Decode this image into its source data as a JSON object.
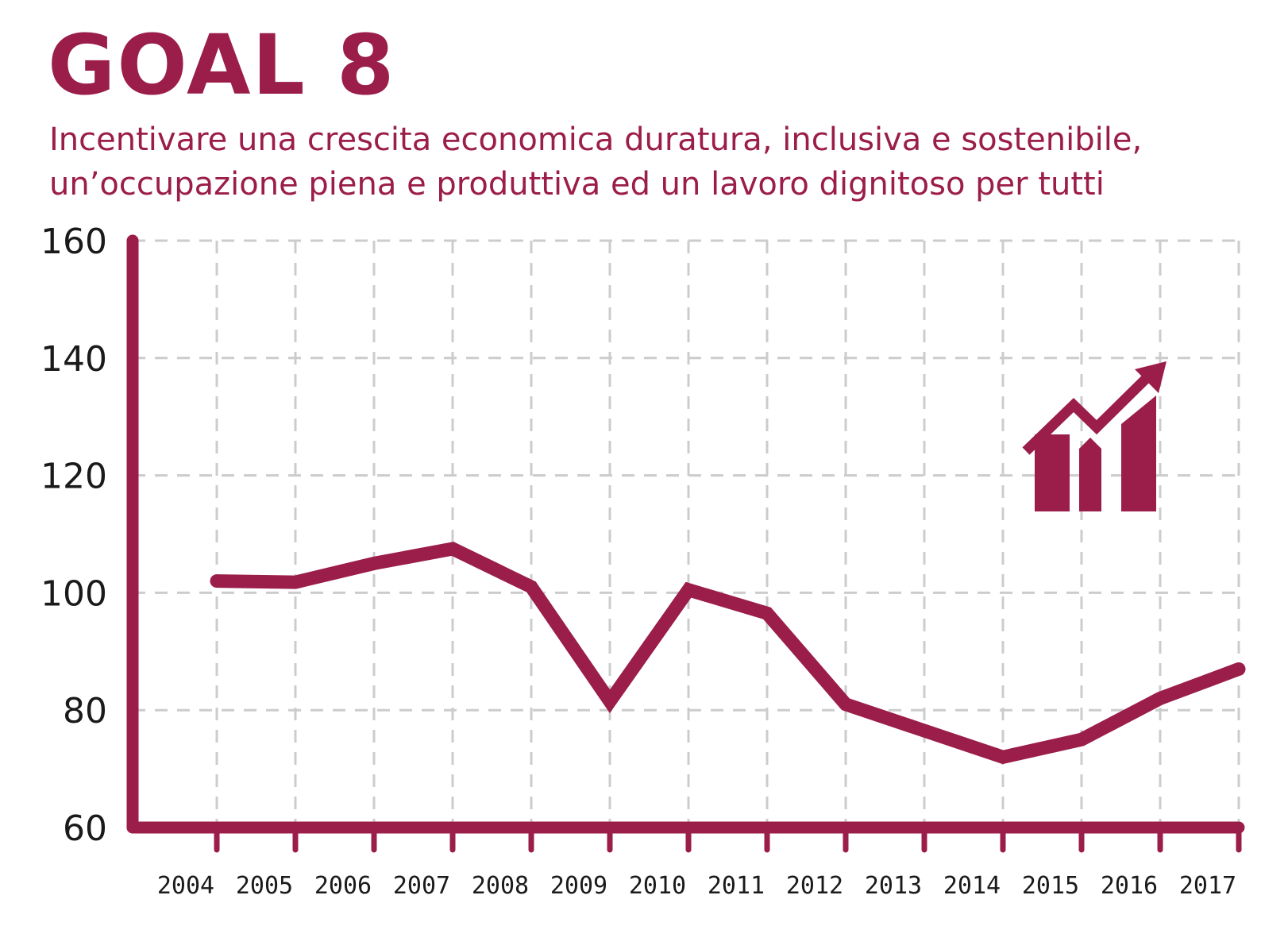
{
  "header": {
    "goal": "GOAL 8",
    "subtitle_line1": "Incentivare una crescita economica duratura, inclusiva e sostenibile,",
    "subtitle_line2": "un’occupazione piena e produttiva ed un lavoro dignitoso per tutti"
  },
  "colors": {
    "accent": "#9b1d4a",
    "grid": "#cccccc",
    "text": "#1a1a1a"
  },
  "icon": {
    "name": "growth-chart-icon"
  },
  "chart_data": {
    "type": "line",
    "title": "GOAL 8",
    "xlabel": "",
    "ylabel": "",
    "categories": [
      "2004",
      "2005",
      "2006",
      "2007",
      "2008",
      "2009",
      "2010",
      "2011",
      "2012",
      "2013",
      "2014",
      "2015",
      "2016",
      "2017"
    ],
    "series": [
      {
        "name": "Goal 8",
        "values": [
          102,
          101.8,
          105,
          107.5,
          101,
          81.5,
          100.5,
          96.5,
          81,
          76.5,
          72,
          75,
          82,
          87
        ]
      }
    ],
    "ylim": [
      60,
      160
    ],
    "yticks": [
      "160",
      "140",
      "120",
      "100",
      "80",
      "60"
    ],
    "grid": true
  }
}
